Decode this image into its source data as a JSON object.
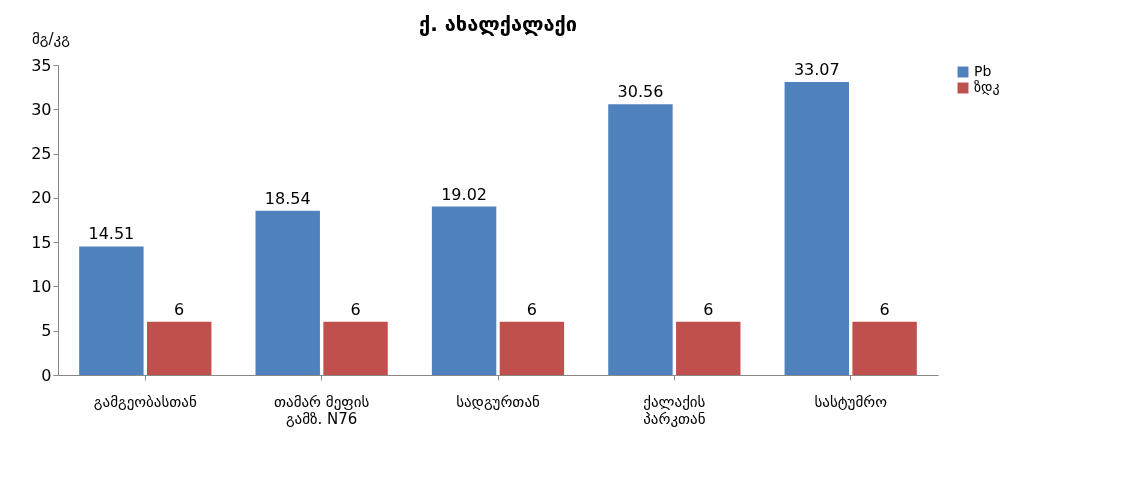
{
  "chart_data": {
    "type": "bar",
    "title": "ქ. ახალქალაქი",
    "ylabel": "მგ/კგ",
    "categories": [
      "გამგეობასთან",
      "თამარ მეფის\nგამზ. N76",
      "სადგურთან",
      "ქალაქის\nპარკთან",
      "სასტუმრო"
    ],
    "series": [
      {
        "name": "Pb",
        "color": "#4f81bd",
        "values": [
          14.51,
          18.54,
          19.02,
          30.56,
          33.07
        ]
      },
      {
        "name": "ზდკ",
        "color": "#c0504d",
        "values": [
          6,
          6,
          6,
          6,
          6
        ]
      }
    ],
    "ylim": [
      0,
      35
    ],
    "yticks": [
      0,
      5,
      10,
      15,
      20,
      25,
      30,
      35
    ],
    "grid": false,
    "legend": "right",
    "data_labels": true
  }
}
